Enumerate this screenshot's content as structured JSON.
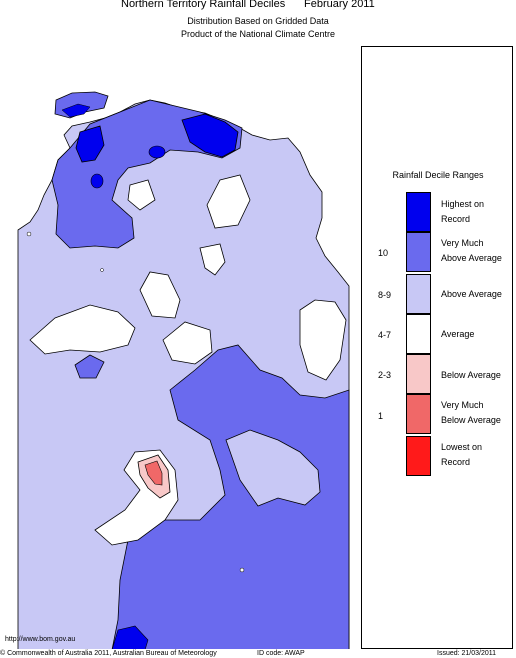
{
  "header": {
    "title": "Northern Territory Rainfall Deciles",
    "date": "February 2011",
    "subtitle1": "Distribution Based on Gridded Data",
    "subtitle2": "Product of the National Climate Centre"
  },
  "legend": {
    "title": "Rainfall Decile Ranges",
    "items": [
      {
        "range": "",
        "label1": "Highest on",
        "label2": "Record",
        "color": "#0000ee"
      },
      {
        "range": "10",
        "label1": "Very Much",
        "label2": "Above Average",
        "color": "#6a6aee"
      },
      {
        "range": "8-9",
        "label1": "Above Average",
        "label2": "",
        "color": "#c8c8f5"
      },
      {
        "range": "4-7",
        "label1": "Average",
        "label2": "",
        "color": "#ffffff"
      },
      {
        "range": "2-3",
        "label1": "Below Average",
        "label2": "",
        "color": "#f8c8c8"
      },
      {
        "range": "1",
        "label1": "Very Much",
        "label2": "Below Average",
        "color": "#f06868"
      },
      {
        "range": "",
        "label1": "Lowest on",
        "label2": "Record",
        "color": "#ff1a1a"
      }
    ]
  },
  "footer": {
    "url": "http://www.bom.gov.au",
    "copyright": "© Commonwealth of Australia 2011, Australian Bureau of Meteorology",
    "id_code": "ID code: AWAP",
    "issued": "Issued: 21/03/2011"
  },
  "colors": {
    "highest": "#0000ee",
    "very_much_above": "#6a6aee",
    "above": "#c8c8f5",
    "average": "#ffffff",
    "below": "#f8c8c8",
    "very_much_below": "#f06868"
  }
}
